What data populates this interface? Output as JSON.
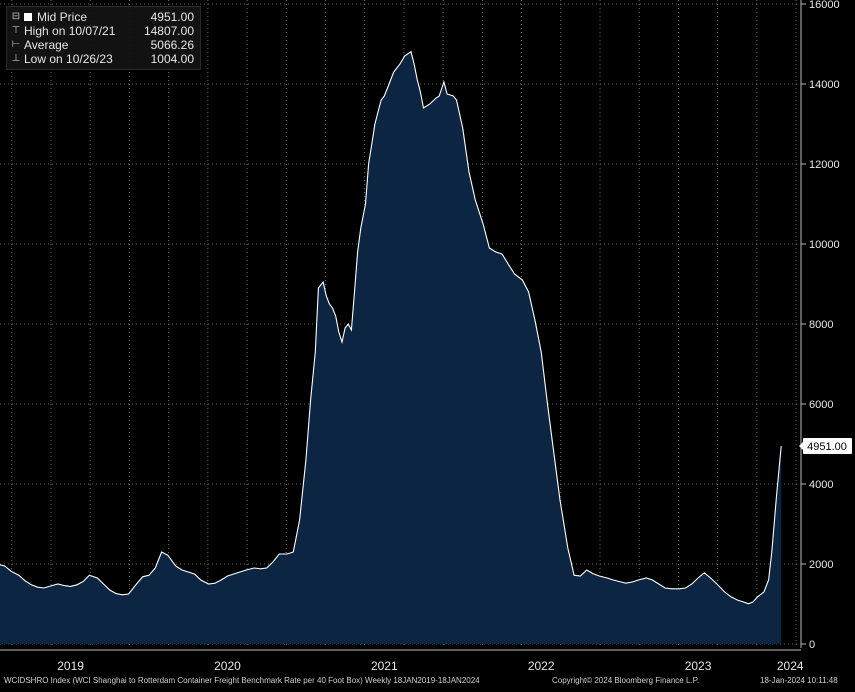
{
  "legend": {
    "title": "Mid Price",
    "title_value": "4951.00",
    "high_label": "High on 10/07/21",
    "high_value": "14807.00",
    "avg_label": "Average",
    "avg_value": "5066.26",
    "low_label": "Low on 10/26/23",
    "low_value": "1004.00"
  },
  "footer": {
    "left": "WCIDSHRO Index (WCI Shanghai to Rotterdam Container Freight Benchmark Rate per 40 Foot Box)  Weekly 18JAN2019-18JAN2024",
    "center": "Copyright© 2024 Bloomberg Finance L.P.",
    "right": "18-Jan-2024 10:11:48"
  },
  "last_price_label": "4951.00",
  "colors": {
    "background": "#000000",
    "area_fill": "#0b2542",
    "line": "#ffffff",
    "grid": "#6a6a6a"
  },
  "chart_data": {
    "type": "area",
    "series": [
      {
        "name": "Mid Price",
        "points": [
          [
            2019.05,
            1980
          ],
          [
            2019.08,
            1950
          ],
          [
            2019.12,
            1820
          ],
          [
            2019.17,
            1720
          ],
          [
            2019.21,
            1580
          ],
          [
            2019.25,
            1480
          ],
          [
            2019.29,
            1420
          ],
          [
            2019.33,
            1400
          ],
          [
            2019.38,
            1460
          ],
          [
            2019.42,
            1500
          ],
          [
            2019.46,
            1460
          ],
          [
            2019.5,
            1440
          ],
          [
            2019.54,
            1480
          ],
          [
            2019.58,
            1560
          ],
          [
            2019.62,
            1720
          ],
          [
            2019.67,
            1650
          ],
          [
            2019.71,
            1500
          ],
          [
            2019.75,
            1350
          ],
          [
            2019.79,
            1260
          ],
          [
            2019.83,
            1230
          ],
          [
            2019.87,
            1250
          ],
          [
            2019.92,
            1500
          ],
          [
            2019.96,
            1680
          ],
          [
            2020.0,
            1720
          ],
          [
            2020.04,
            1900
          ],
          [
            2020.08,
            2300
          ],
          [
            2020.12,
            2220
          ],
          [
            2020.17,
            1950
          ],
          [
            2020.21,
            1850
          ],
          [
            2020.25,
            1800
          ],
          [
            2020.29,
            1750
          ],
          [
            2020.33,
            1600
          ],
          [
            2020.38,
            1500
          ],
          [
            2020.42,
            1520
          ],
          [
            2020.46,
            1600
          ],
          [
            2020.5,
            1700
          ],
          [
            2020.54,
            1750
          ],
          [
            2020.58,
            1800
          ],
          [
            2020.62,
            1850
          ],
          [
            2020.67,
            1900
          ],
          [
            2020.71,
            1880
          ],
          [
            2020.75,
            1900
          ],
          [
            2020.79,
            2050
          ],
          [
            2020.83,
            2250
          ],
          [
            2020.88,
            2250
          ],
          [
            2020.92,
            2300
          ],
          [
            2020.96,
            3100
          ],
          [
            2021.0,
            4600
          ],
          [
            2021.03,
            6100
          ],
          [
            2021.06,
            7300
          ],
          [
            2021.08,
            8900
          ],
          [
            2021.11,
            9050
          ],
          [
            2021.13,
            8700
          ],
          [
            2021.15,
            8500
          ],
          [
            2021.17,
            8400
          ],
          [
            2021.19,
            8200
          ],
          [
            2021.21,
            7800
          ],
          [
            2021.23,
            7550
          ],
          [
            2021.25,
            7900
          ],
          [
            2021.27,
            8000
          ],
          [
            2021.29,
            7850
          ],
          [
            2021.31,
            8800
          ],
          [
            2021.33,
            9800
          ],
          [
            2021.35,
            10400
          ],
          [
            2021.38,
            11000
          ],
          [
            2021.4,
            12000
          ],
          [
            2021.42,
            12500
          ],
          [
            2021.44,
            13000
          ],
          [
            2021.46,
            13300
          ],
          [
            2021.48,
            13600
          ],
          [
            2021.5,
            13700
          ],
          [
            2021.52,
            13900
          ],
          [
            2021.54,
            14100
          ],
          [
            2021.56,
            14300
          ],
          [
            2021.6,
            14500
          ],
          [
            2021.63,
            14700
          ],
          [
            2021.67,
            14807
          ],
          [
            2021.69,
            14500
          ],
          [
            2021.71,
            14100
          ],
          [
            2021.73,
            13800
          ],
          [
            2021.75,
            13400
          ],
          [
            2021.79,
            13500
          ],
          [
            2021.83,
            13650
          ],
          [
            2021.85,
            13700
          ],
          [
            2021.88,
            14050
          ],
          [
            2021.9,
            13750
          ],
          [
            2021.94,
            13700
          ],
          [
            2021.96,
            13600
          ],
          [
            2022.0,
            12900
          ],
          [
            2022.04,
            11800
          ],
          [
            2022.08,
            11100
          ],
          [
            2022.13,
            10500
          ],
          [
            2022.17,
            9900
          ],
          [
            2022.21,
            9800
          ],
          [
            2022.25,
            9750
          ],
          [
            2022.29,
            9500
          ],
          [
            2022.33,
            9250
          ],
          [
            2022.38,
            9100
          ],
          [
            2022.42,
            8800
          ],
          [
            2022.46,
            8100
          ],
          [
            2022.5,
            7300
          ],
          [
            2022.54,
            6000
          ],
          [
            2022.58,
            4800
          ],
          [
            2022.62,
            3600
          ],
          [
            2022.67,
            2400
          ],
          [
            2022.71,
            1720
          ],
          [
            2022.75,
            1700
          ],
          [
            2022.79,
            1850
          ],
          [
            2022.83,
            1760
          ],
          [
            2022.87,
            1700
          ],
          [
            2022.92,
            1650
          ],
          [
            2022.96,
            1600
          ],
          [
            2023.0,
            1560
          ],
          [
            2023.04,
            1520
          ],
          [
            2023.08,
            1550
          ],
          [
            2023.12,
            1600
          ],
          [
            2023.17,
            1650
          ],
          [
            2023.21,
            1600
          ],
          [
            2023.25,
            1500
          ],
          [
            2023.29,
            1400
          ],
          [
            2023.33,
            1380
          ],
          [
            2023.38,
            1380
          ],
          [
            2023.42,
            1400
          ],
          [
            2023.46,
            1500
          ],
          [
            2023.5,
            1650
          ],
          [
            2023.54,
            1780
          ],
          [
            2023.58,
            1650
          ],
          [
            2023.62,
            1500
          ],
          [
            2023.67,
            1300
          ],
          [
            2023.71,
            1180
          ],
          [
            2023.75,
            1100
          ],
          [
            2023.79,
            1050
          ],
          [
            2023.82,
            1004
          ],
          [
            2023.85,
            1050
          ],
          [
            2023.88,
            1180
          ],
          [
            2023.92,
            1300
          ],
          [
            2023.95,
            1600
          ],
          [
            2023.97,
            2300
          ],
          [
            2024.0,
            3700
          ],
          [
            2024.03,
            4951
          ]
        ]
      }
    ],
    "x_ticks": [
      "2019",
      "2020",
      "2021",
      "2022",
      "2023",
      "2024"
    ],
    "y_ticks": [
      0,
      2000,
      4000,
      6000,
      8000,
      10000,
      12000,
      14000,
      16000
    ],
    "xlim": [
      2019.05,
      2024.15
    ],
    "ylim": [
      -100,
      16100
    ],
    "last_value": 4951,
    "grid": true,
    "legend_position": "top-left"
  }
}
